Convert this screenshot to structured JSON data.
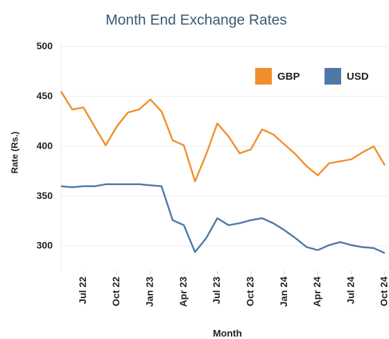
{
  "chart_data": {
    "type": "line",
    "title": "Month End Exchange Rates",
    "x_label": "Month",
    "y_label": "Rate (Rs.)",
    "categories": [
      null,
      null,
      "Jul 22",
      null,
      null,
      "Oct 22",
      null,
      null,
      "Jan 23",
      null,
      null,
      "Apr 23",
      null,
      null,
      "Jul 23",
      null,
      null,
      "Oct 23",
      null,
      null,
      "Jan 24",
      null,
      null,
      "Apr 24",
      null,
      null,
      "Jul 24",
      null,
      null,
      "Oct 24"
    ],
    "series": [
      {
        "name": "GBP",
        "color": "#f28e2b",
        "values": [
          455,
          437,
          439,
          420,
          401,
          420,
          434,
          437,
          447,
          435,
          406,
          401,
          365,
          392,
          423,
          410,
          393,
          397,
          417,
          412,
          402,
          392,
          380,
          371,
          383,
          385,
          387,
          394,
          400,
          381
        ]
      },
      {
        "name": "USD",
        "color": "#4e79a7",
        "values": [
          360,
          359,
          360,
          360,
          362,
          362,
          362,
          362,
          361,
          360,
          326,
          321,
          294,
          308,
          328,
          321,
          323,
          326,
          328,
          323,
          316,
          308,
          299,
          296,
          301,
          304,
          301,
          299,
          298,
          293
        ]
      }
    ],
    "ylim": [
      275,
      505
    ],
    "yticks": [
      300,
      350,
      400,
      450,
      500
    ],
    "grid": true,
    "legend": "top-right"
  }
}
